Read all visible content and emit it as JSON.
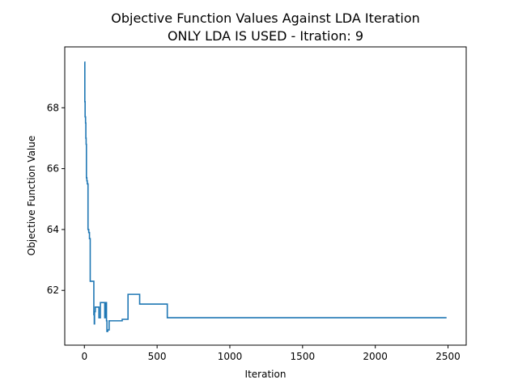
{
  "chart_data": {
    "type": "line",
    "title": "Objective Function Values Against LDA Iteration",
    "subtitle": "ONLY LDA IS USED - Itration: 9",
    "xlabel": "Iteration",
    "ylabel": "Objective Function Value",
    "xlim": [
      -135,
      2625
    ],
    "ylim": [
      60.2,
      70.0
    ],
    "xticks": [
      0,
      500,
      1000,
      1500,
      2000,
      2500
    ],
    "yticks": [
      62,
      64,
      66,
      68
    ],
    "grid": false,
    "color": "#1f77b4",
    "series": [
      {
        "x": [
          0,
          3,
          3,
          5,
          5,
          8,
          8,
          10,
          10,
          12,
          12,
          14,
          14,
          17,
          17,
          20,
          20,
          25,
          25,
          30,
          30,
          35,
          35,
          40,
          40,
          65,
          65,
          68,
          68,
          70,
          70,
          75,
          75,
          100,
          100,
          110,
          110,
          140,
          140,
          148,
          148,
          152,
          152,
          155,
          155,
          160,
          160,
          170,
          170,
          260,
          260,
          300,
          300,
          380,
          380,
          570,
          570,
          1350,
          1350,
          2490
        ],
        "y": [
          69.5,
          69.5,
          68.2,
          68.2,
          67.7,
          67.7,
          67.5,
          67.5,
          67.0,
          67.0,
          66.8,
          66.8,
          65.7,
          65.7,
          65.6,
          65.6,
          65.5,
          65.5,
          64.0,
          64.0,
          63.9,
          63.9,
          63.7,
          63.7,
          62.3,
          62.3,
          61.2,
          61.2,
          60.9,
          60.9,
          61.3,
          61.3,
          61.45,
          61.45,
          61.1,
          61.1,
          61.6,
          61.6,
          61.1,
          61.1,
          61.6,
          61.6,
          61.0,
          61.0,
          60.65,
          60.65,
          60.7,
          60.7,
          61.0,
          61.0,
          61.05,
          61.05,
          61.87,
          61.87,
          61.55,
          61.55,
          61.1,
          61.1,
          61.1,
          61.1
        ]
      }
    ]
  }
}
